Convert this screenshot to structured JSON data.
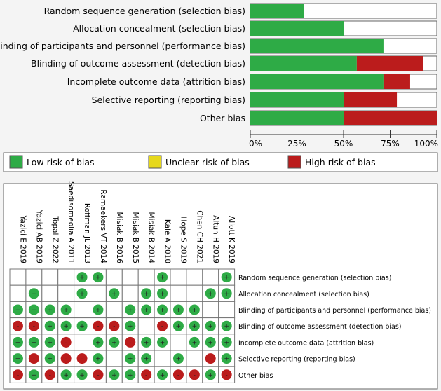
{
  "colors": {
    "low": "#2eab46",
    "unclear": "#e6d81c",
    "high": "#bb1c1c"
  },
  "chart_data": [
    {
      "type": "bar",
      "orientation": "horizontal-stacked",
      "categories": [
        "Random sequence generation (selection bias)",
        "Allocation concealment (selection bias)",
        "Blinding of participants and personnel (performance bias)",
        "Blinding of outcome assessment (detection bias)",
        "Incomplete outcome data (attrition bias)",
        "Selective reporting (reporting bias)",
        "Other bias"
      ],
      "series": [
        {
          "name": "Low risk of bias",
          "values": [
            28.6,
            50,
            71.4,
            57.1,
            71.4,
            50,
            50
          ]
        },
        {
          "name": "Unclear risk of bias",
          "values": [
            0,
            0,
            0,
            0,
            0,
            0,
            0
          ]
        },
        {
          "name": "High risk of bias",
          "values": [
            0,
            0,
            0,
            35.7,
            14.3,
            28.6,
            50
          ]
        }
      ],
      "xlim": [
        0,
        100
      ],
      "xticks": [
        "0%",
        "25%",
        "50%",
        "75%",
        "100%"
      ],
      "legend": "bottom"
    },
    {
      "type": "table",
      "studies": [
        "Yazici E 2019",
        "Yazici AB 2019",
        "Topal Z 2022",
        "Saedisomeolia A 2011",
        "Roffman JL 2013",
        "Ramaekers VT 2014",
        "Misiak B 2016",
        "Misiak B 2015",
        "Misiak B 2014",
        "Kale A 2010",
        "Hope S 2019",
        "Chen CH 2021",
        "Altun H 2019",
        "Allott K 2019"
      ],
      "domains": [
        "Random sequence generation (selection bias)",
        "Allocation concealment (selection bias)",
        "Blinding of participants and personnel (performance bias)",
        "Blinding of outcome assessment (detection bias)",
        "Incomplete outcome data (attrition bias)",
        "Selective reporting (reporting bias)",
        "Other bias"
      ],
      "judgements": [
        [
          "",
          "",
          "",
          "",
          "+",
          "+",
          "",
          "",
          "",
          "+",
          "",
          "",
          "",
          "+"
        ],
        [
          "",
          "+",
          "",
          "",
          "+",
          "",
          "+",
          "",
          "+",
          "+",
          "",
          "",
          "+",
          "+"
        ],
        [
          "+",
          "+",
          "+",
          "+",
          "",
          "+",
          "",
          "+",
          "+",
          "+",
          "+",
          "+",
          "",
          ""
        ],
        [
          "-",
          "-",
          "+",
          "+",
          "+",
          "-",
          "-",
          "+",
          "",
          "-",
          "+",
          "+",
          "+",
          "+"
        ],
        [
          "+",
          "+",
          "+",
          "-",
          "",
          "+",
          "+",
          "-",
          "+",
          "+",
          "",
          "+",
          "+",
          "+"
        ],
        [
          "+",
          "-",
          "+",
          "-",
          "-",
          "+",
          "",
          "+",
          "+",
          "",
          "+",
          "",
          "-",
          "+"
        ],
        [
          "-",
          "+",
          "-",
          "+",
          "+",
          "-",
          "+",
          "+",
          "-",
          "+",
          "-",
          "-",
          "+",
          "-"
        ]
      ]
    }
  ]
}
